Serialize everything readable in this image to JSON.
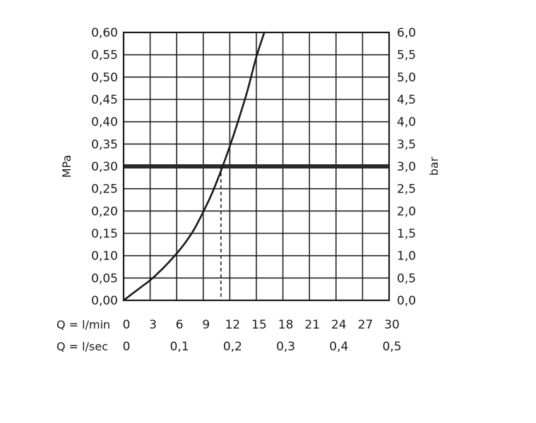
{
  "chart_data": {
    "type": "line",
    "title": "",
    "ylabel_left": "MPa",
    "ylabel_right": "bar",
    "x_row_labels": {
      "lmin": "Q = l/min",
      "lsec": "Q = l/sec"
    },
    "xlim": [
      0,
      30
    ],
    "ylim": [
      0,
      0.6
    ],
    "x_ticks_lmin": [
      "0",
      "3",
      "6",
      "9",
      "12",
      "15",
      "18",
      "21",
      "24",
      "27",
      "30"
    ],
    "x_ticks_lsec": [
      {
        "x": 0,
        "label": "0"
      },
      {
        "x": 6,
        "label": "0,1"
      },
      {
        "x": 12,
        "label": "0,2"
      },
      {
        "x": 18,
        "label": "0,3"
      },
      {
        "x": 24,
        "label": "0,4"
      },
      {
        "x": 30,
        "label": "0,5"
      }
    ],
    "y_ticks_left": [
      "0,00",
      "0,05",
      "0,10",
      "0,15",
      "0,20",
      "0,25",
      "0,30",
      "0,35",
      "0,40",
      "0,45",
      "0,50",
      "0,55",
      "0,60"
    ],
    "y_ticks_right": [
      "0,0",
      "0,5",
      "1,0",
      "1,5",
      "2,0",
      "2,5",
      "3,0",
      "3,5",
      "4,0",
      "4,5",
      "5,0",
      "5,5",
      "6,0"
    ],
    "grid": true,
    "series": [
      {
        "x": [
          0,
          1,
          2,
          3,
          4,
          5,
          6,
          7,
          8,
          9,
          10,
          11,
          12,
          13,
          14,
          15,
          15.9
        ],
        "y": [
          0,
          0.015,
          0.03,
          0.045,
          0.063,
          0.083,
          0.105,
          0.13,
          0.16,
          0.198,
          0.24,
          0.29,
          0.345,
          0.405,
          0.47,
          0.545,
          0.6
        ]
      }
    ],
    "reference_line": {
      "y": 0.3
    },
    "reference_drop": {
      "x": 11.0,
      "y": 0.3
    }
  }
}
